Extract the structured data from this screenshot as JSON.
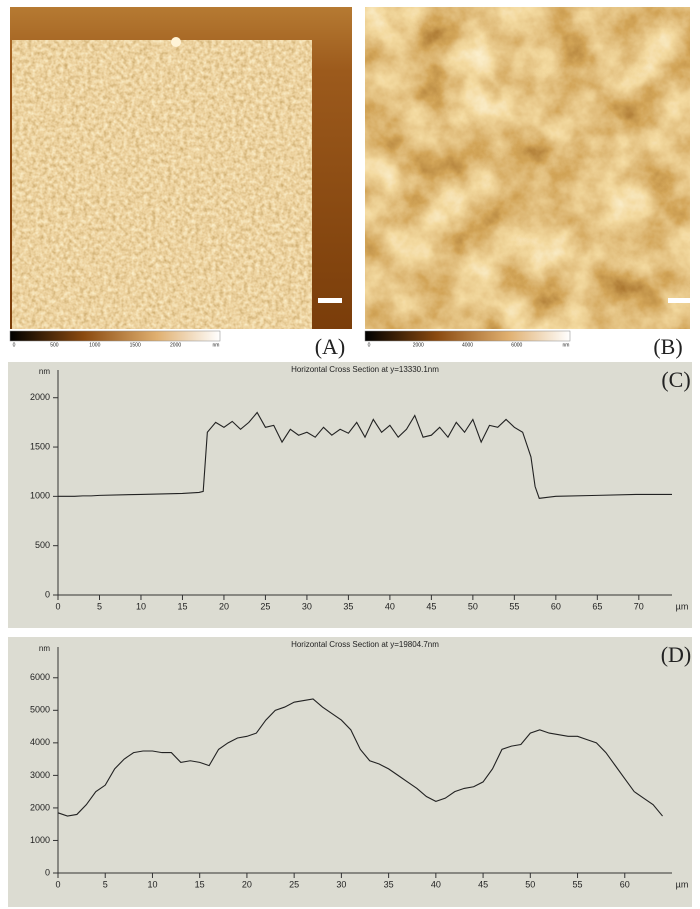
{
  "images": [
    {
      "label": "(A)",
      "colorbar_ticks": [
        "0",
        "500",
        "1000",
        "1500",
        "2000",
        "nm"
      ]
    },
    {
      "label": "(B)",
      "colorbar_ticks": [
        "0",
        "2000",
        "4000",
        "6000",
        "nm"
      ]
    }
  ],
  "chart_data": [
    {
      "type": "line",
      "title": "Horizontal Cross Section at y=13330.1nm",
      "panel_label": "(C)",
      "y_unit": "nm",
      "x_unit": "µm",
      "x": [
        0,
        1,
        2,
        3,
        4,
        5,
        10,
        15,
        17,
        17.5,
        18,
        18.5,
        19,
        20,
        21,
        22,
        23,
        24,
        25,
        26,
        27,
        28,
        29,
        30,
        31,
        32,
        33,
        34,
        35,
        36,
        37,
        38,
        39,
        40,
        41,
        42,
        43,
        44,
        45,
        46,
        47,
        48,
        49,
        50,
        51,
        52,
        53,
        54,
        55,
        56,
        57,
        57.5,
        58,
        59,
        60,
        65,
        70,
        74
      ],
      "series": [
        {
          "color": "#222222",
          "values": [
            1000,
            1000,
            1000,
            1005,
            1005,
            1010,
            1020,
            1030,
            1040,
            1050,
            1650,
            1700,
            1750,
            1700,
            1760,
            1680,
            1750,
            1850,
            1700,
            1720,
            1550,
            1680,
            1620,
            1650,
            1600,
            1700,
            1620,
            1680,
            1640,
            1750,
            1600,
            1780,
            1650,
            1720,
            1600,
            1680,
            1820,
            1600,
            1620,
            1700,
            1600,
            1750,
            1650,
            1780,
            1550,
            1720,
            1700,
            1780,
            1700,
            1650,
            1400,
            1100,
            980,
            990,
            1000,
            1010,
            1020,
            1020
          ]
        }
      ],
      "xlim": [
        0,
        74
      ],
      "xticks": [
        0,
        5,
        10,
        15,
        20,
        25,
        30,
        35,
        40,
        45,
        50,
        55,
        60,
        65,
        70
      ],
      "ylim": [
        0,
        2200
      ],
      "yticks": [
        0,
        500,
        1000,
        1500,
        2000
      ]
    },
    {
      "type": "line",
      "title": "Horizontal Cross Section at y=19804.7nm",
      "panel_label": "(D)",
      "y_unit": "nm",
      "x_unit": "µm",
      "x": [
        0,
        1,
        2,
        3,
        4,
        5,
        6,
        7,
        8,
        9,
        10,
        11,
        12,
        13,
        14,
        15,
        16,
        17,
        18,
        19,
        20,
        21,
        22,
        23,
        24,
        25,
        26,
        27,
        28,
        29,
        30,
        31,
        32,
        33,
        34,
        35,
        36,
        37,
        38,
        39,
        40,
        41,
        42,
        43,
        44,
        45,
        46,
        47,
        48,
        49,
        50,
        51,
        52,
        53,
        54,
        55,
        56,
        57,
        58,
        59,
        60,
        61,
        62,
        63,
        64
      ],
      "series": [
        {
          "color": "#222222",
          "values": [
            1850,
            1750,
            1800,
            2100,
            2500,
            2700,
            3200,
            3500,
            3700,
            3750,
            3750,
            3700,
            3700,
            3400,
            3450,
            3400,
            3300,
            3800,
            4000,
            4150,
            4200,
            4300,
            4700,
            5000,
            5100,
            5250,
            5300,
            5350,
            5100,
            4900,
            4700,
            4400,
            3800,
            3450,
            3350,
            3200,
            3000,
            2800,
            2600,
            2350,
            2200,
            2300,
            2500,
            2600,
            2650,
            2800,
            3200,
            3800,
            3900,
            3950,
            4300,
            4400,
            4300,
            4250,
            4200,
            4200,
            4100,
            4000,
            3700,
            3300,
            2900,
            2500,
            2300,
            2100,
            1750
          ]
        }
      ],
      "xlim": [
        0,
        65
      ],
      "xticks": [
        0,
        5,
        10,
        15,
        20,
        25,
        30,
        35,
        40,
        45,
        50,
        55,
        60
      ],
      "ylim": [
        0,
        6700
      ],
      "yticks": [
        0,
        1000,
        2000,
        3000,
        4000,
        5000,
        6000
      ]
    }
  ]
}
